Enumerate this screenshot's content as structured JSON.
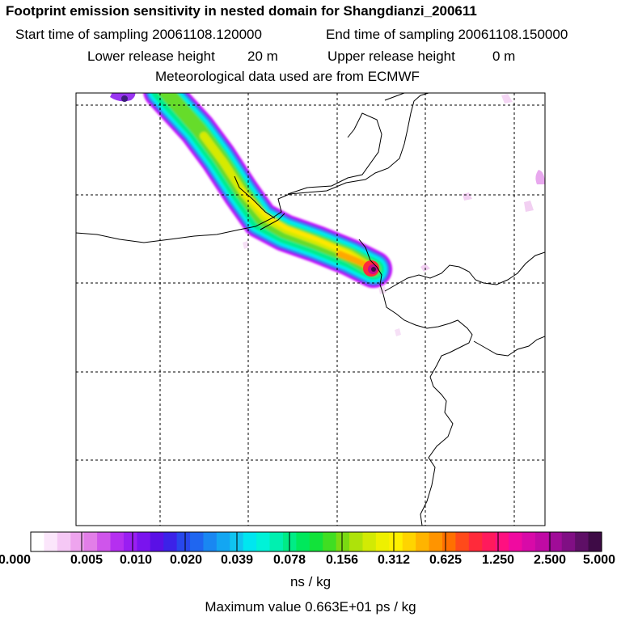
{
  "title": "Footprint emission sensitivity in nested domain for Shangdianzi_200611",
  "start_label": "Start time of sampling 20061108.120000",
  "end_label": "End time of sampling 20061108.150000",
  "lower_label": "Lower release height",
  "lower_value": "20 m",
  "upper_label": "Upper release height",
  "upper_value": "0 m",
  "met_label": "Meteorological data used are from ECMWF",
  "colorbar": {
    "ticks": [
      "0.000",
      "0.005",
      "0.010",
      "0.020",
      "0.039",
      "0.078",
      "0.156",
      "0.312",
      "0.625",
      "1.250",
      "2.500",
      "5.000"
    ],
    "colors": [
      "#ffffff",
      "#fbe6fb",
      "#f5c8f5",
      "#eea4ee",
      "#e27ee8",
      "#cf55eb",
      "#b52ff0",
      "#9a1ef2",
      "#7a14ee",
      "#5a10e6",
      "#3c22e8",
      "#2847ec",
      "#1f66f0",
      "#1987f2",
      "#13a6f2",
      "#10c4f0",
      "#00e6f0",
      "#00f2d8",
      "#00f0b0",
      "#00ec86",
      "#00e85c",
      "#12e23a",
      "#40de22",
      "#7ada12",
      "#aee20a",
      "#d2ea04",
      "#eef000",
      "#fff000",
      "#ffd400",
      "#ffb400",
      "#ff9400",
      "#ff7000",
      "#ff4a1a",
      "#ff2a3a",
      "#ff1a5c",
      "#ff1080",
      "#f00aa0",
      "#d80aa8",
      "#c00aa4",
      "#a00c98",
      "#800f84",
      "#5e0f66",
      "#3e0b46"
    ],
    "unit": "ns / kg"
  },
  "max_label": "Maximum value  0.663E+01 ps / kg"
}
